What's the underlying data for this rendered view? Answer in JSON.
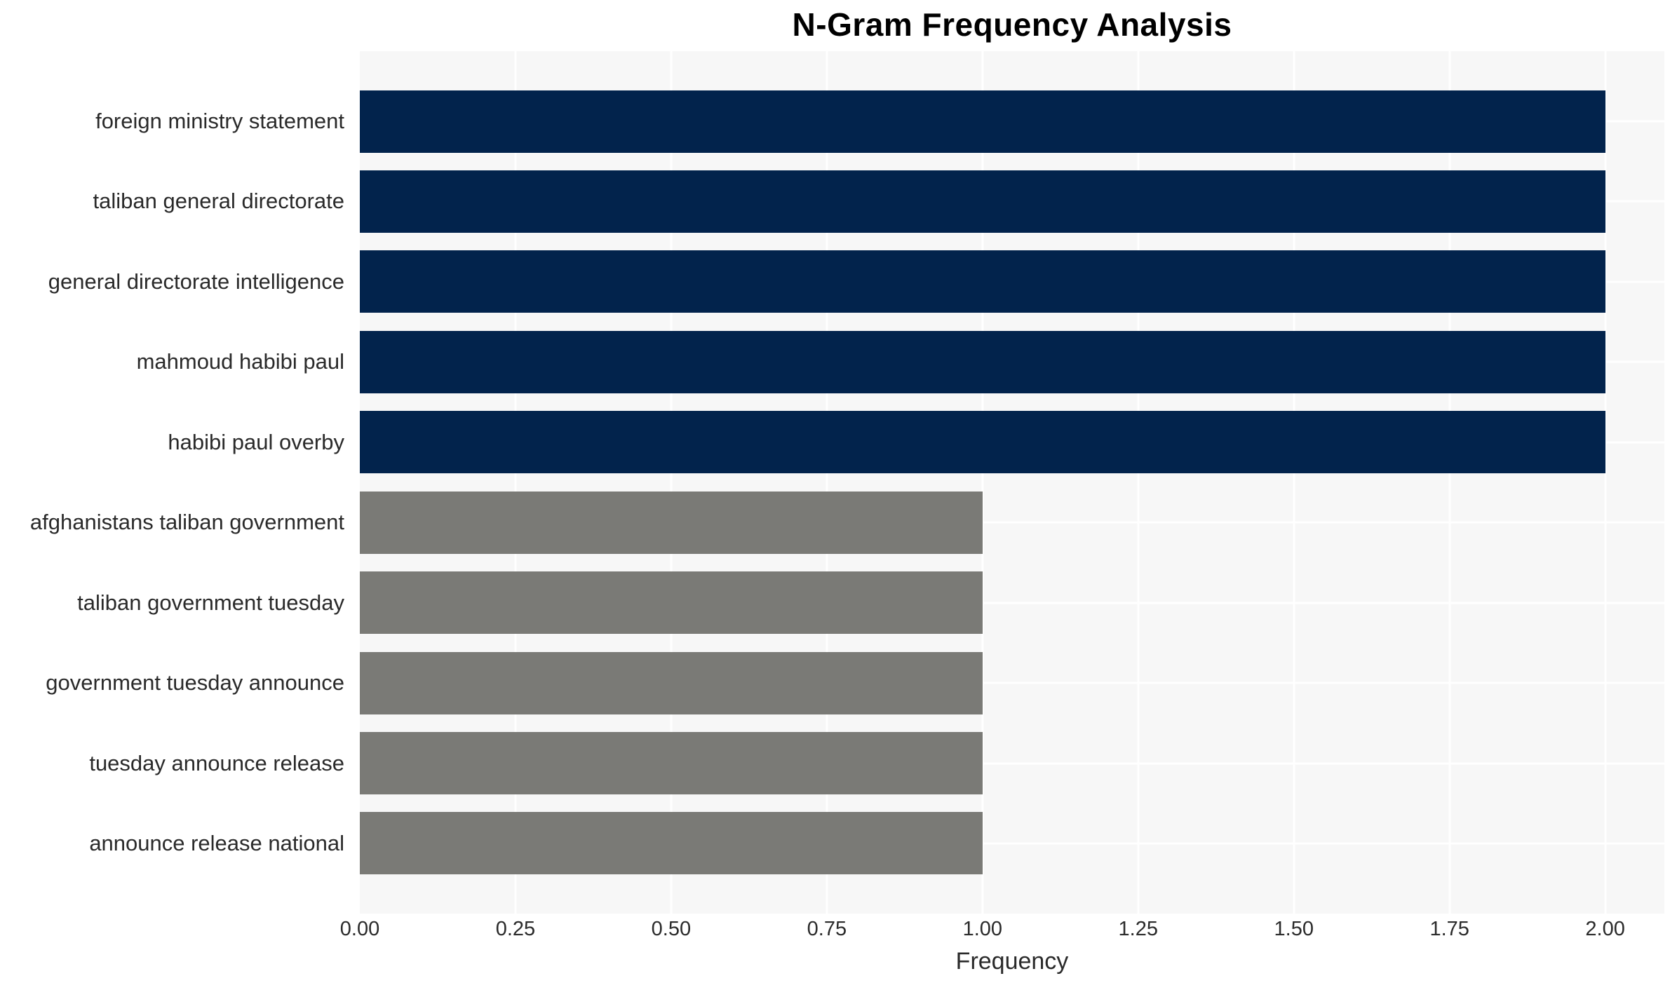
{
  "title": "N-Gram Frequency Analysis",
  "chart_data": {
    "type": "bar",
    "orientation": "horizontal",
    "title": "N-Gram Frequency Analysis",
    "categories": [
      "foreign ministry statement",
      "taliban general directorate",
      "general directorate intelligence",
      "mahmoud habibi paul",
      "habibi paul overby",
      "afghanistans taliban government",
      "taliban government tuesday",
      "government tuesday announce",
      "tuesday announce release",
      "announce release national"
    ],
    "values": [
      2,
      2,
      2,
      2,
      2,
      1,
      1,
      1,
      1,
      1
    ],
    "bar_colors": [
      "#02234c",
      "#02234c",
      "#02234c",
      "#02234c",
      "#02234c",
      "#7a7a76",
      "#7a7a76",
      "#7a7a76",
      "#7a7a76",
      "#7a7a76"
    ],
    "xlabel": "Frequency",
    "xticks": [
      0,
      0.25,
      0.5,
      0.75,
      1.0,
      1.25,
      1.5,
      1.75,
      2.0
    ],
    "xtick_labels": [
      "0.00",
      "0.25",
      "0.50",
      "0.75",
      "1.00",
      "1.25",
      "1.50",
      "1.75",
      "2.00"
    ],
    "xlim": [
      0,
      2.095
    ],
    "grid": true,
    "legend": false,
    "plot_bg": "#f7f7f7",
    "grid_color": "#ffffff"
  }
}
